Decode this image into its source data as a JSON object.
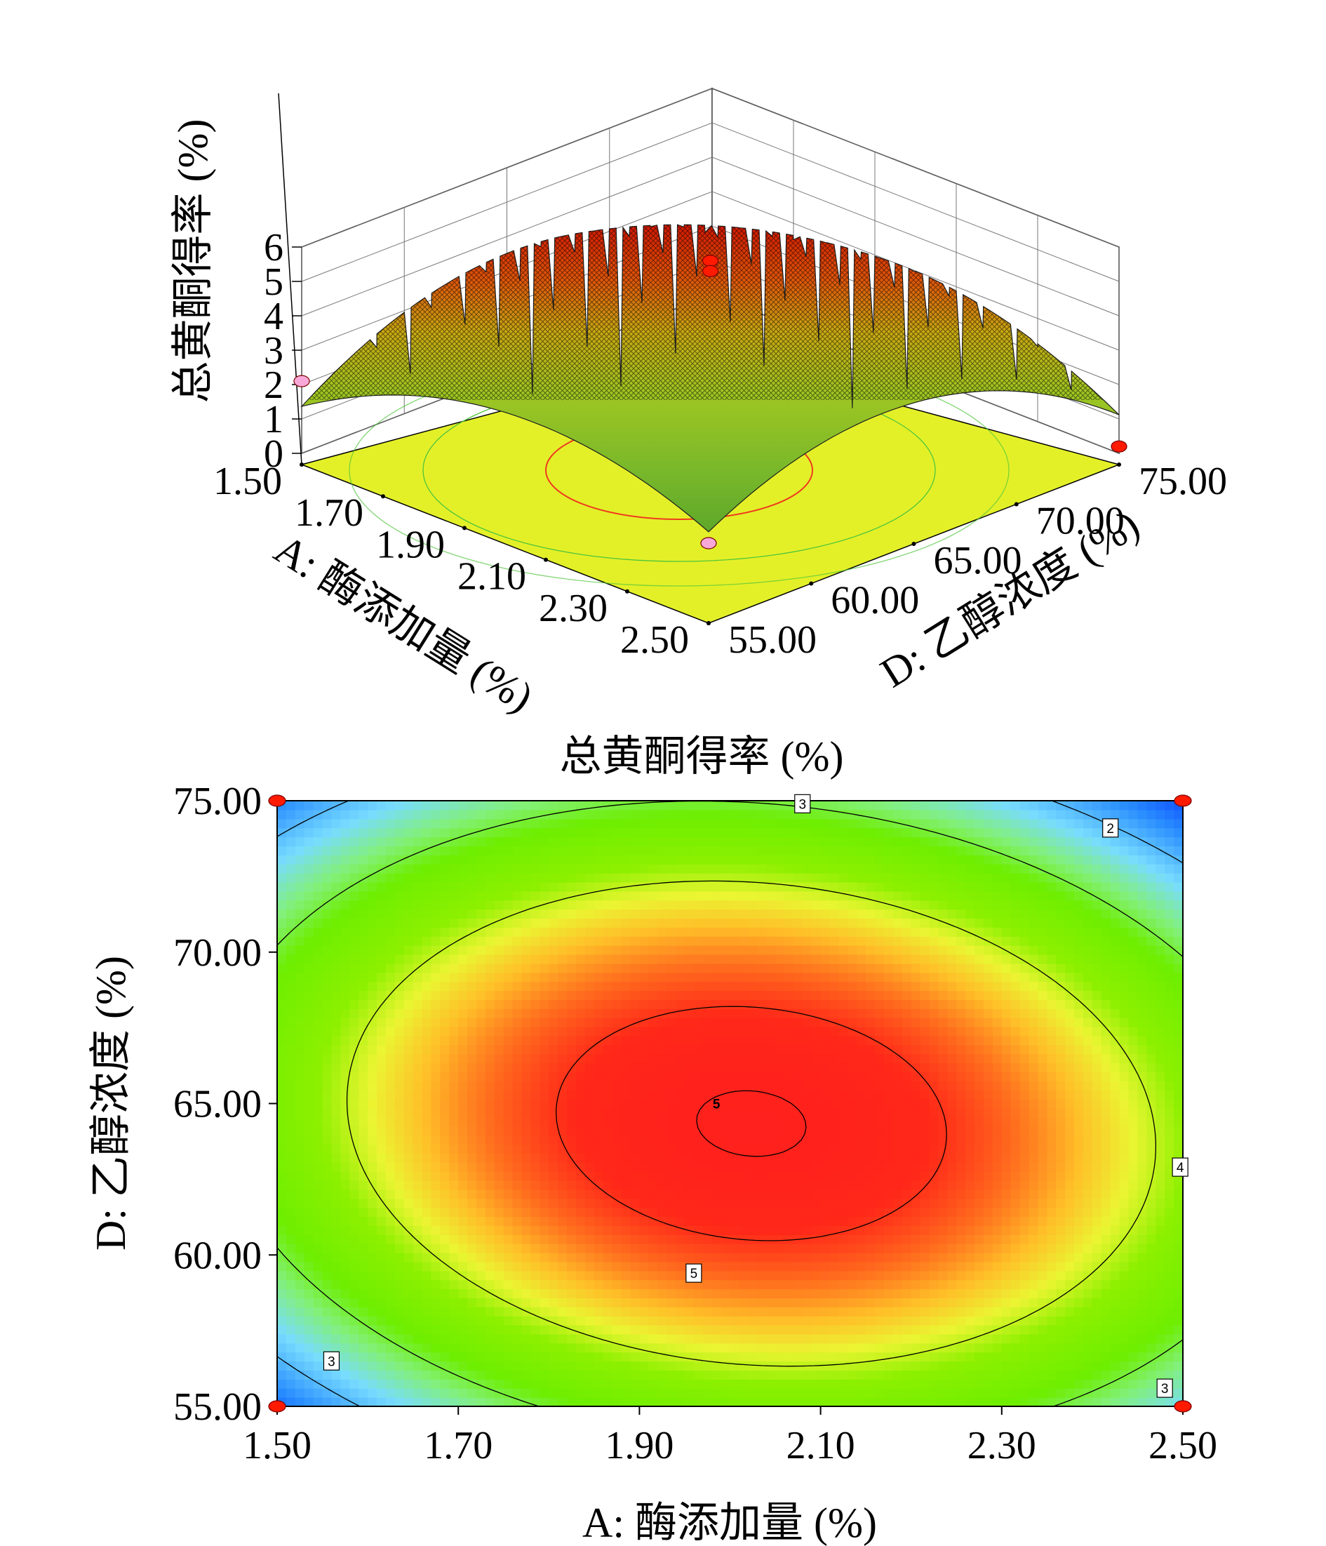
{
  "chart_data": [
    {
      "type": "surface",
      "zlabel": "总黄酮得率 (%)",
      "xlabel": "A: 酶添加量 (%)",
      "ylabel": "D: 乙醇浓度 (%)",
      "z_ticks": [
        "0",
        "1",
        "2",
        "3",
        "4",
        "5",
        "6"
      ],
      "x_ticks": [
        "1.50",
        "1.70",
        "1.90",
        "2.10",
        "2.30",
        "2.50"
      ],
      "y_ticks": [
        "55.00",
        "60.00",
        "65.00",
        "70.00",
        "75.00"
      ],
      "zlim": [
        0,
        6
      ],
      "xlim": [
        1.5,
        2.5
      ],
      "ylim": [
        55,
        75
      ],
      "grid": true,
      "surface": {
        "peak": 5.3,
        "peak_A": 2.0,
        "peak_D": 64.5,
        "corners": {
          "A1.50_D55": 2.1,
          "A2.50_D75": 0.2,
          "A1.50_D75": 2.4,
          "A2.50_D55": 2.4
        }
      },
      "design_points": [
        {
          "A": 2.0,
          "D": 65.0,
          "z": 5.6,
          "color": "#ff1a00"
        },
        {
          "A": 2.0,
          "D": 65.0,
          "z": 5.3,
          "color": "#ff1a00"
        },
        {
          "A": 1.5,
          "D": 55.0,
          "z": 2.1,
          "color": "#f7a8d8"
        },
        {
          "A": 2.5,
          "D": 75.0,
          "z": 0.2,
          "color": "#ff1a00"
        },
        {
          "A": 2.5,
          "D": 55.0,
          "z": 2.0,
          "color": "#f7a8d8"
        }
      ]
    },
    {
      "type": "heatmap",
      "title": "总黄酮得率 (%)",
      "xlabel": "A: 酶添加量 (%)",
      "ylabel": "D: 乙醇浓度 (%)",
      "x_ticks": [
        "1.50",
        "1.70",
        "1.90",
        "2.10",
        "2.30",
        "2.50"
      ],
      "y_ticks": [
        "55.00",
        "60.00",
        "65.00",
        "70.00",
        "75.00"
      ],
      "xlim": [
        1.5,
        2.5
      ],
      "ylim": [
        55,
        75
      ],
      "contour_levels": [
        2,
        3,
        4,
        5
      ],
      "contour_labels": [
        {
          "text": "3",
          "A": 2.08,
          "D": 74.9
        },
        {
          "text": "2",
          "A": 2.42,
          "D": 74.1
        },
        {
          "text": "4",
          "A": 2.497,
          "D": 62.9
        },
        {
          "text": "5",
          "A": 1.96,
          "D": 59.4
        },
        {
          "text": "3",
          "A": 1.56,
          "D": 56.5
        },
        {
          "text": "3",
          "A": 2.48,
          "D": 55.6
        }
      ],
      "center_label": {
        "text": "5",
        "A": 1.985,
        "D": 65.0
      },
      "design_points": [
        {
          "A": 1.5,
          "D": 75.0
        },
        {
          "A": 2.5,
          "D": 75.0
        },
        {
          "A": 1.5,
          "D": 55.0
        },
        {
          "A": 2.5,
          "D": 55.0
        }
      ]
    }
  ]
}
